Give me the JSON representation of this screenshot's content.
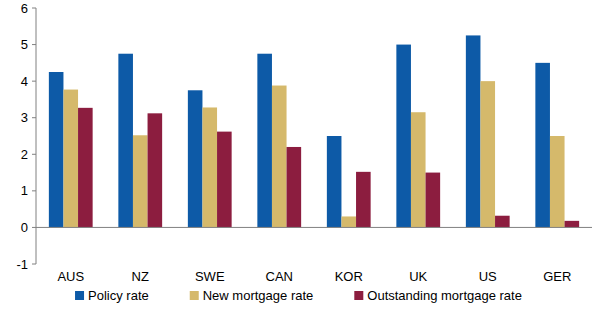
{
  "chart_data": {
    "type": "bar",
    "categories": [
      "AUS",
      "NZ",
      "SWE",
      "CAN",
      "KOR",
      "UK",
      "US",
      "GER"
    ],
    "series": [
      {
        "name": "Policy rate",
        "color": "#0d5aa7",
        "values": [
          4.25,
          4.75,
          3.75,
          4.75,
          2.5,
          5.0,
          5.25,
          4.5
        ]
      },
      {
        "name": "New mortgage rate",
        "color": "#d5b96b",
        "values": [
          3.77,
          2.52,
          3.28,
          3.88,
          0.3,
          3.15,
          4.0,
          2.5
        ]
      },
      {
        "name": "Outstanding mortgage rate",
        "color": "#8c1d3f",
        "values": [
          3.27,
          3.12,
          2.62,
          2.2,
          1.52,
          1.5,
          0.32,
          0.18
        ]
      }
    ],
    "ylim": [
      -1,
      6
    ],
    "yticks": [
      -1,
      0,
      1,
      2,
      3,
      4,
      5,
      6
    ],
    "grid": false,
    "legend": "bottom"
  }
}
